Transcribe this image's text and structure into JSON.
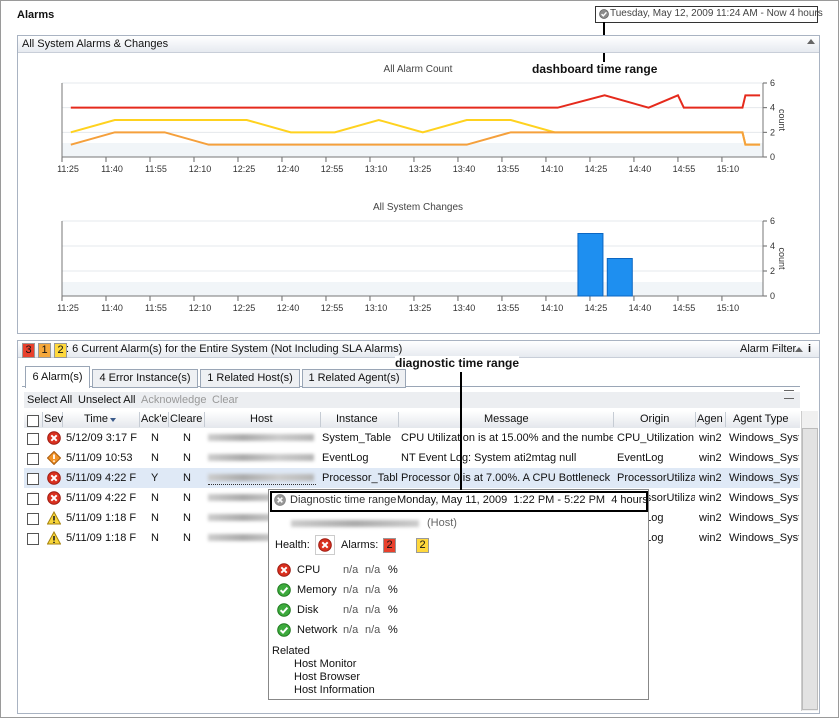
{
  "header": {
    "title": "Alarms",
    "time_range": "Tuesday, May 12, 2009 11:24 AM - Now 4 hours"
  },
  "callouts": [
    "dashboard time range",
    "diagnostic time range"
  ],
  "panel": {
    "title": "All System Alarms & Changes"
  },
  "chart_data": [
    {
      "type": "line",
      "title": "All Alarm Count",
      "y_label": "count",
      "xlim": [
        "11:25",
        "15:24"
      ],
      "xticks": [
        "11:25",
        "11:40",
        "11:55",
        "12:10",
        "12:25",
        "12:40",
        "12:55",
        "13:10",
        "13:25",
        "13:40",
        "13:55",
        "14:10",
        "14:25",
        "14:40",
        "14:55",
        "15:10"
      ],
      "ylim": [
        0,
        6
      ],
      "yticks": [
        0,
        2,
        4,
        6
      ],
      "grid": true,
      "series": [
        {
          "color": "#e52a1c",
          "x": [
            "11:28",
            "14:14",
            "14:30",
            "14:45",
            "14:55",
            "14:57",
            "15:17",
            "15:18",
            "15:23"
          ],
          "values": [
            4,
            4,
            5,
            4,
            5,
            4,
            4,
            5,
            5
          ]
        },
        {
          "color": "#ffd21f",
          "x": [
            "11:28",
            "11:43",
            "12:28",
            "12:43",
            "12:58",
            "13:13",
            "13:28",
            "13:43",
            "13:58",
            "14:13",
            "15:17",
            "15:18",
            "15:23"
          ],
          "values": [
            2,
            3,
            3,
            2,
            2,
            3,
            2,
            3,
            3,
            2,
            2,
            1,
            1
          ]
        },
        {
          "color": "#f5a03c",
          "x": [
            "11:28",
            "11:43",
            "12:00",
            "12:15",
            "13:43",
            "13:58",
            "15:17",
            "15:18",
            "15:23"
          ],
          "values": [
            1,
            2,
            2,
            1,
            1,
            2,
            2,
            1,
            1
          ]
        }
      ]
    },
    {
      "type": "bar",
      "title": "All System Changes",
      "y_label": "count",
      "xlim": [
        "11:25",
        "15:24"
      ],
      "xticks": [
        "11:25",
        "11:40",
        "11:55",
        "12:10",
        "12:25",
        "12:40",
        "12:55",
        "13:10",
        "13:25",
        "13:40",
        "13:55",
        "14:10",
        "14:25",
        "14:40",
        "14:55",
        "15:10"
      ],
      "ylim": [
        0,
        6
      ],
      "yticks": [
        0,
        2,
        4,
        6
      ],
      "grid": true,
      "color": "#1e8ff0",
      "x": [
        "14:25",
        "14:35"
      ],
      "values": [
        5,
        3
      ]
    }
  ],
  "alarms_panel": {
    "badges": [
      {
        "value": 3,
        "color": "#e8402c"
      },
      {
        "value": 1,
        "color": "#f5a83c"
      },
      {
        "value": 2,
        "color": "#ffd83c"
      }
    ],
    "summary": ": 6 Current Alarm(s) for the Entire System (Not Including SLA Alarms)",
    "filter": "Alarm Filter",
    "info": "i"
  },
  "tabs": [
    "6 Alarm(s)",
    "4 Error Instance(s)",
    "1 Related Host(s)",
    "1 Related Agent(s)"
  ],
  "toolbar": [
    {
      "label": "Select All",
      "enabled": true
    },
    {
      "label": "Unselect All",
      "enabled": true
    },
    {
      "label": "Acknowledge",
      "enabled": false
    },
    {
      "label": "Clear",
      "enabled": false
    }
  ],
  "table": {
    "columns": [
      "Sev",
      "Time",
      "Ack'e",
      "Cleare",
      "Host",
      "Instance",
      "Message",
      "Origin",
      "Agen",
      "Agent Type"
    ],
    "rows": [
      {
        "icon": "error",
        "time": "5/12/09 3:17 F",
        "ack": "N",
        "cleared": "N",
        "instance": "System_Table",
        "message": "CPU Utilization is at 15.00% and the numbe",
        "origin": "CPU_Utilization",
        "agent": "win2",
        "agent_type": "Windows_Syst"
      },
      {
        "icon": "diamond",
        "time": "5/11/09 10:53",
        "ack": "N",
        "cleared": "N",
        "instance": "EventLog",
        "message": "NT Event Log: System ati2mtag null",
        "origin": "EventLog",
        "agent": "win2",
        "agent_type": "Windows_Syst"
      },
      {
        "icon": "error",
        "time": "5/11/09 4:22 F",
        "ack": "Y",
        "cleared": "N",
        "instance": "Processor_Tabl",
        "message": "Processor 0 is at 7.00%. A CPU Bottleneck i",
        "origin": "ProcessorUtiliza",
        "agent": "win2",
        "agent_type": "Windows_Syst"
      },
      {
        "icon": "error",
        "time": "5/11/09 4:22 F",
        "ack": "N",
        "cleared": "N",
        "origin": "ProcessorUtiliza",
        "agent": "win2",
        "agent_type": "Windows_Syst"
      },
      {
        "icon": "warning",
        "time": "5/11/09 1:18 F",
        "ack": "N",
        "cleared": "N",
        "origin": "EventLog",
        "agent": "win2",
        "agent_type": "Windows_Syst"
      },
      {
        "icon": "warning",
        "time": "5/11/09 1:18 F",
        "ack": "N",
        "cleared": "N",
        "origin": "EventLog",
        "agent": "win2",
        "agent_type": "Windows_Syst"
      }
    ]
  },
  "popup": {
    "label": "Diagnostic time range",
    "range": "Monday, May 11, 2009  1:22 PM - 5:22 PM  4 hours",
    "host_suffix": "(Host)",
    "health_label": "Health:",
    "alarms_label": "Alarms:",
    "alarm_badges": [
      {
        "value": 2,
        "color": "#e8402c"
      },
      {
        "value": 2,
        "color": "#ffd83c"
      }
    ],
    "metrics": [
      {
        "name": "CPU",
        "icon": "error",
        "values": [
          "n/a",
          "n/a"
        ],
        "unit": "%"
      },
      {
        "name": "Memory",
        "icon": "ok",
        "values": [
          "n/a",
          "n/a"
        ],
        "unit": "%"
      },
      {
        "name": "Disk",
        "icon": "ok",
        "values": [
          "n/a",
          "n/a"
        ],
        "unit": "%"
      },
      {
        "name": "Network",
        "icon": "ok",
        "values": [
          "n/a",
          "n/a"
        ],
        "unit": "%"
      }
    ],
    "related_label": "Related",
    "links": [
      "Host Monitor",
      "Host Browser",
      "Host Information"
    ]
  }
}
